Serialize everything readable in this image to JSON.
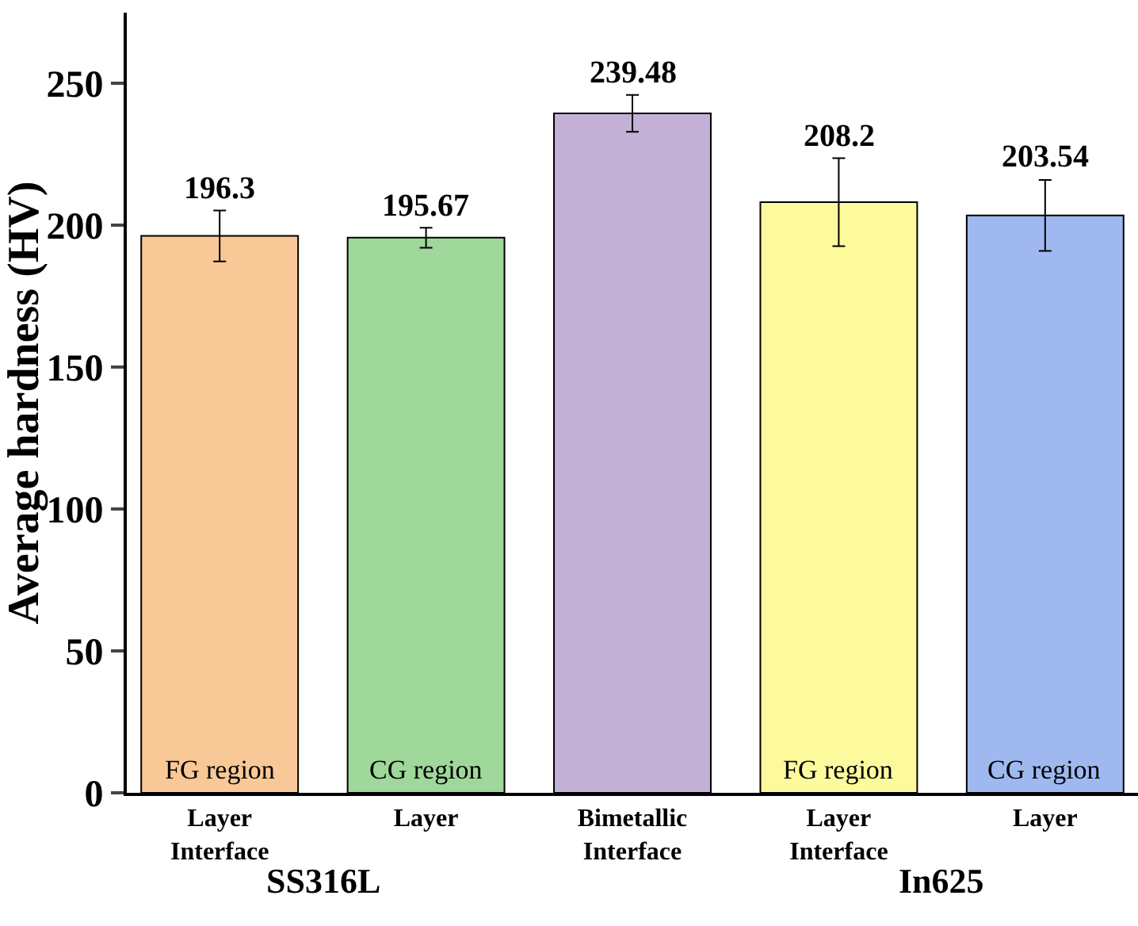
{
  "chart_data": {
    "type": "bar",
    "ylabel": "Average hardness (HV)",
    "categories": [
      "Layer\nInterface",
      "Layer",
      "Bimetallic\nInterface",
      "Layer\nInterface",
      "Layer"
    ],
    "values": [
      196.3,
      195.67,
      239.48,
      208.2,
      203.54
    ],
    "errors": [
      9,
      3.5,
      6.5,
      15.5,
      12.5
    ],
    "colors": [
      "#f9c897",
      "#9fd89a",
      "#c3b1d8",
      "#fdfa9e",
      "#9fb9f0"
    ],
    "data_labels": true,
    "ylim": [
      0,
      275
    ],
    "yticks": [
      0,
      50,
      100,
      150,
      200,
      250
    ],
    "grid": false,
    "annotations": [
      "FG region",
      "CG region",
      "FG region",
      "CG region",
      "SS316L",
      "In625"
    ]
  }
}
